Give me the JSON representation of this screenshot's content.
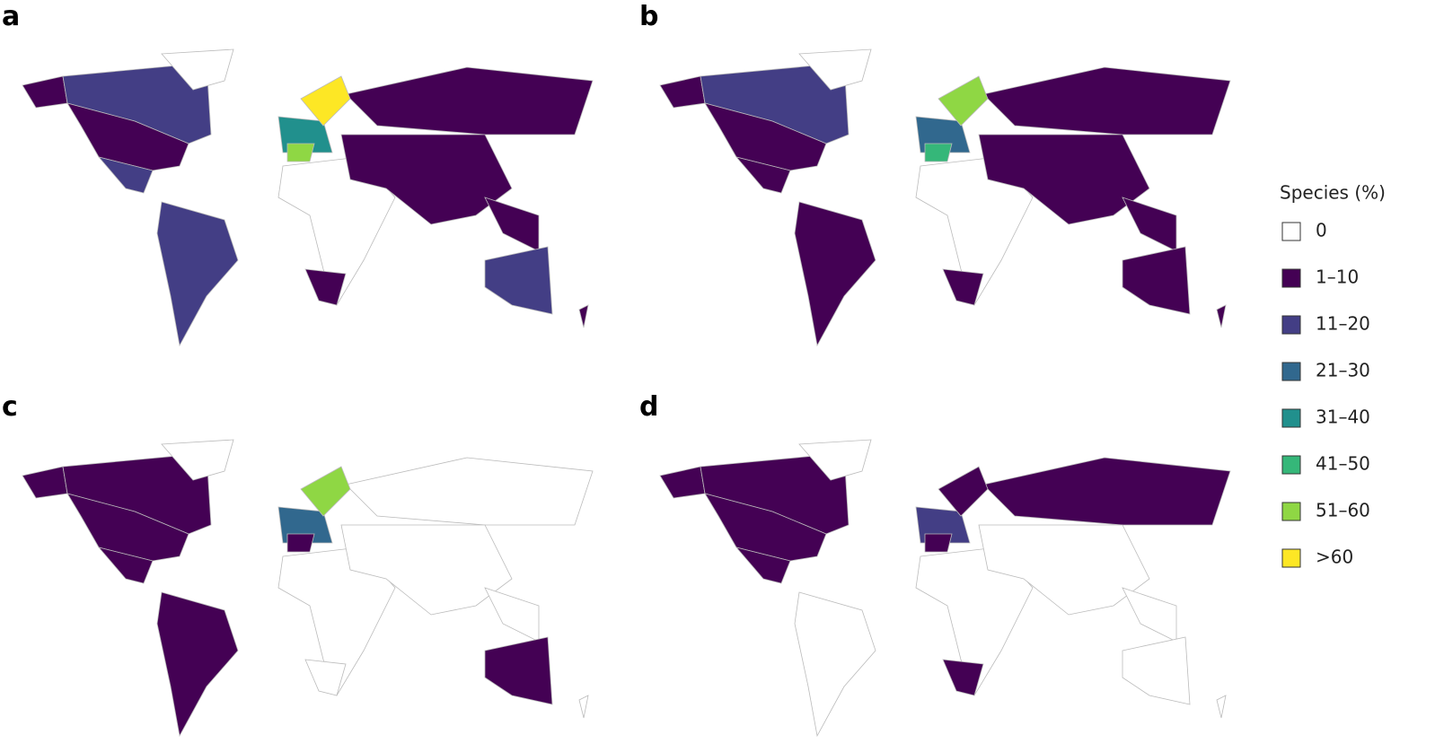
{
  "panels": [
    {
      "label": "a"
    },
    {
      "label": "b"
    },
    {
      "label": "c"
    },
    {
      "label": "d"
    }
  ],
  "legend": {
    "title": "Species (%)",
    "items": [
      {
        "label": "0",
        "color": "#ffffff"
      },
      {
        "label": "1–10",
        "color": "#440154"
      },
      {
        "label": "11–20",
        "color": "#433e85"
      },
      {
        "label": "21–30",
        "color": "#31688e"
      },
      {
        "label": "31–40",
        "color": "#21908d"
      },
      {
        "label": "41–50",
        "color": "#35b779"
      },
      {
        "label": "51–60",
        "color": "#8fd744"
      },
      {
        "label": ">60",
        "color": "#fde725"
      }
    ]
  }
}
